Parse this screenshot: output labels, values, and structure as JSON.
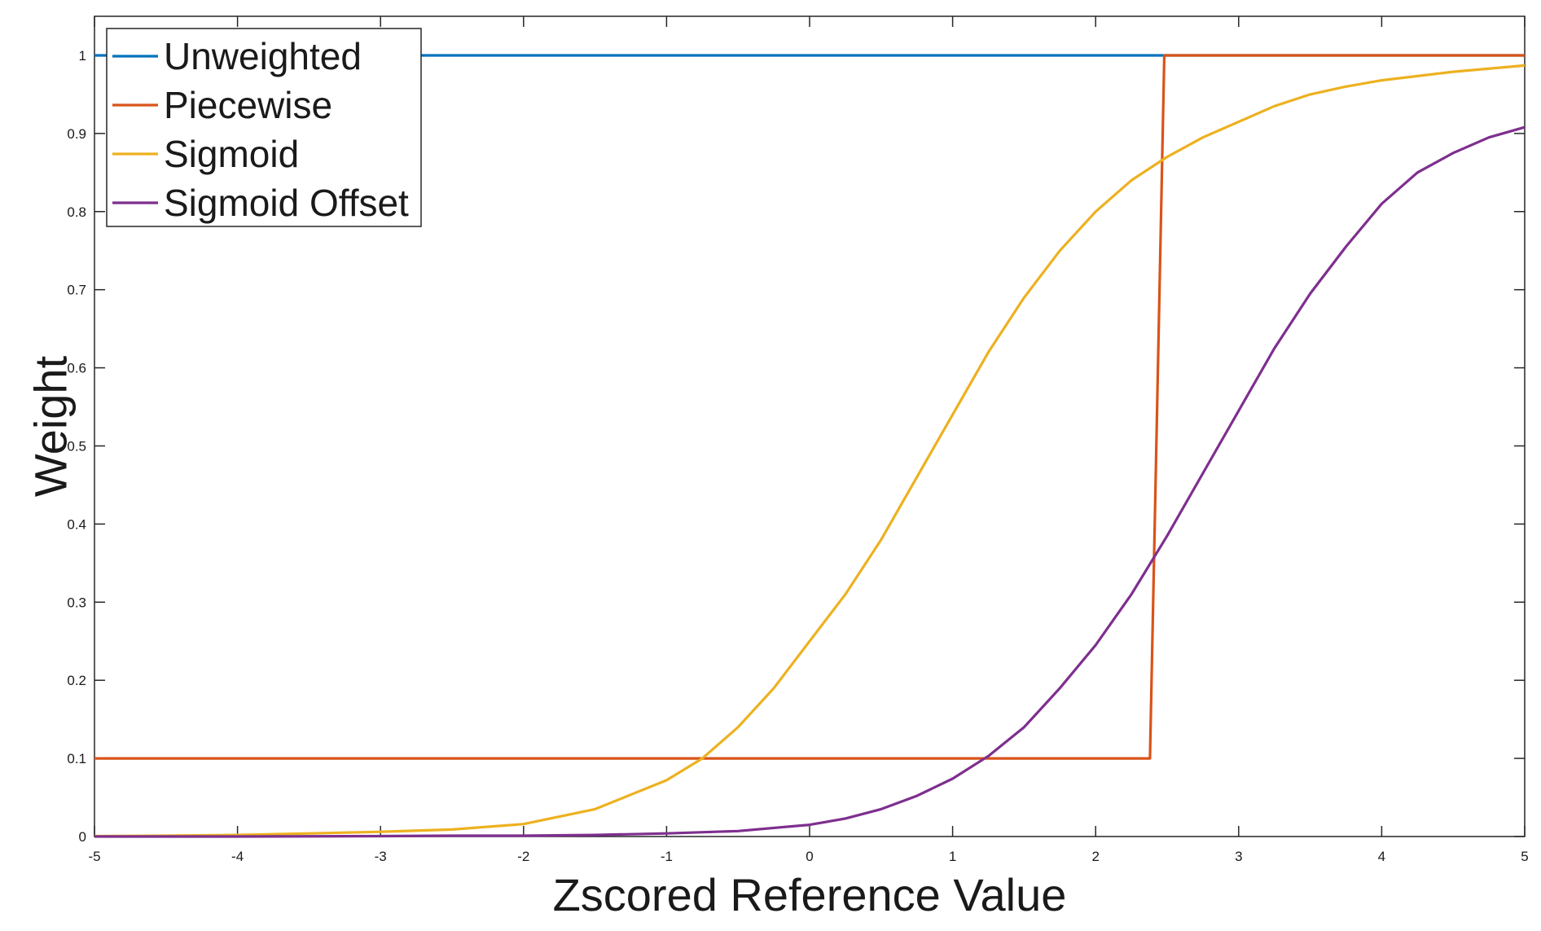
{
  "chart_data": {
    "type": "line",
    "title": "",
    "xlabel": "Zscored Reference Value",
    "ylabel": "Weight",
    "xlim": [
      -5,
      5
    ],
    "ylim": [
      0,
      1.05
    ],
    "xticks": [
      -5,
      -4,
      -3,
      -2,
      -1,
      0,
      1,
      2,
      3,
      4,
      5
    ],
    "yticks": [
      0,
      0.1,
      0.2,
      0.3,
      0.4,
      0.5,
      0.6,
      0.7,
      0.8,
      0.9,
      1
    ],
    "xtick_labels": [
      "-5",
      "-4",
      "-3",
      "-2",
      "-1",
      "0",
      "1",
      "2",
      "3",
      "4",
      "5"
    ],
    "ytick_labels": [
      "0",
      "0.1",
      "0.2",
      "0.3",
      "0.4",
      "0.5",
      "0.6",
      "0.7",
      "0.8",
      "0.9",
      "1"
    ],
    "grid": false,
    "legend_position": "top-left",
    "series": [
      {
        "name": "Unweighted",
        "color": "#0072BD",
        "x": [
          -5,
          5
        ],
        "y": [
          1,
          1
        ]
      },
      {
        "name": "Piecewise",
        "color": "#D95319",
        "x": [
          -5,
          2.38,
          2.48,
          5
        ],
        "y": [
          0.1,
          0.1,
          1,
          1
        ]
      },
      {
        "name": "Sigmoid",
        "color": "#EDB120",
        "x": [
          -5,
          -4.5,
          -4,
          -3.5,
          -3,
          -2.5,
          -2,
          -1.5,
          -1,
          -0.75,
          -0.5,
          -0.25,
          0,
          0.25,
          0.5,
          0.75,
          1,
          1.25,
          1.5,
          1.75,
          2,
          2.25,
          2.5,
          2.75,
          3,
          3.25,
          3.5,
          3.75,
          4,
          4.5,
          5
        ],
        "y": [
          0.0005,
          0.001,
          0.002,
          0.004,
          0.006,
          0.009,
          0.016,
          0.035,
          0.072,
          0.1,
          0.14,
          0.19,
          0.25,
          0.31,
          0.38,
          0.46,
          0.54,
          0.62,
          0.69,
          0.75,
          0.8,
          0.84,
          0.87,
          0.895,
          0.915,
          0.935,
          0.95,
          0.96,
          0.968,
          0.979,
          0.987
        ]
      },
      {
        "name": "Sigmoid Offset",
        "color": "#7E2F8E",
        "x": [
          -5,
          -4,
          -3,
          -2.5,
          -2,
          -1.5,
          -1,
          -0.5,
          0,
          0.25,
          0.5,
          0.75,
          1,
          1.25,
          1.5,
          1.75,
          2,
          2.25,
          2.5,
          2.75,
          3,
          3.25,
          3.5,
          3.75,
          4,
          4.25,
          4.5,
          4.75,
          5
        ],
        "y": [
          0,
          0,
          0.0005,
          0.001,
          0.001,
          0.002,
          0.004,
          0.007,
          0.015,
          0.023,
          0.035,
          0.052,
          0.074,
          0.103,
          0.14,
          0.19,
          0.245,
          0.31,
          0.385,
          0.465,
          0.545,
          0.625,
          0.695,
          0.755,
          0.81,
          0.85,
          0.875,
          0.895,
          0.908
        ]
      }
    ]
  }
}
